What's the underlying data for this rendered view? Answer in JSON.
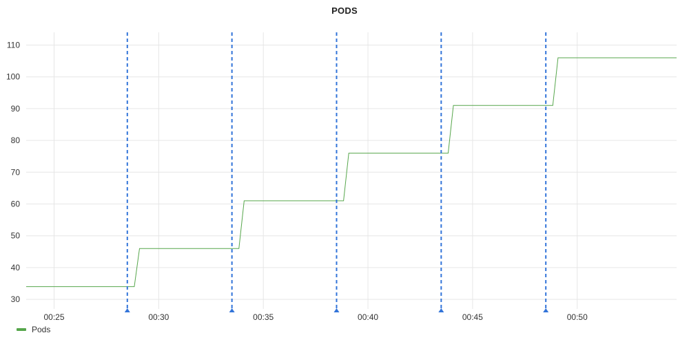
{
  "colors": {
    "series": "#56a64b",
    "annotation": "#3274d9",
    "grid": "#e6e6e6"
  },
  "chart_data": {
    "type": "line",
    "title": "PODS",
    "xlabel": "",
    "ylabel": "",
    "x_tick_labels": [
      "00:25",
      "00:30",
      "00:35",
      "00:40",
      "00:45",
      "00:50"
    ],
    "y_ticks": [
      30,
      40,
      50,
      60,
      70,
      80,
      90,
      100,
      110
    ],
    "xlim": [
      "00:23:40",
      "00:54:45"
    ],
    "ylim": [
      27,
      114
    ],
    "grid": true,
    "legend_position": "bottom-left",
    "series": [
      {
        "name": "Pods",
        "points": [
          [
            "00:23:40",
            34
          ],
          [
            "00:28:50",
            34
          ],
          [
            "00:29:05",
            46
          ],
          [
            "00:33:50",
            46
          ],
          [
            "00:34:05",
            61
          ],
          [
            "00:38:50",
            61
          ],
          [
            "00:39:05",
            76
          ],
          [
            "00:43:50",
            76
          ],
          [
            "00:44:05",
            91
          ],
          [
            "00:48:50",
            91
          ],
          [
            "00:49:05",
            106
          ],
          [
            "00:54:45",
            106
          ]
        ]
      }
    ],
    "annotations": [
      "00:28:30",
      "00:33:30",
      "00:38:30",
      "00:43:30",
      "00:48:30"
    ]
  }
}
